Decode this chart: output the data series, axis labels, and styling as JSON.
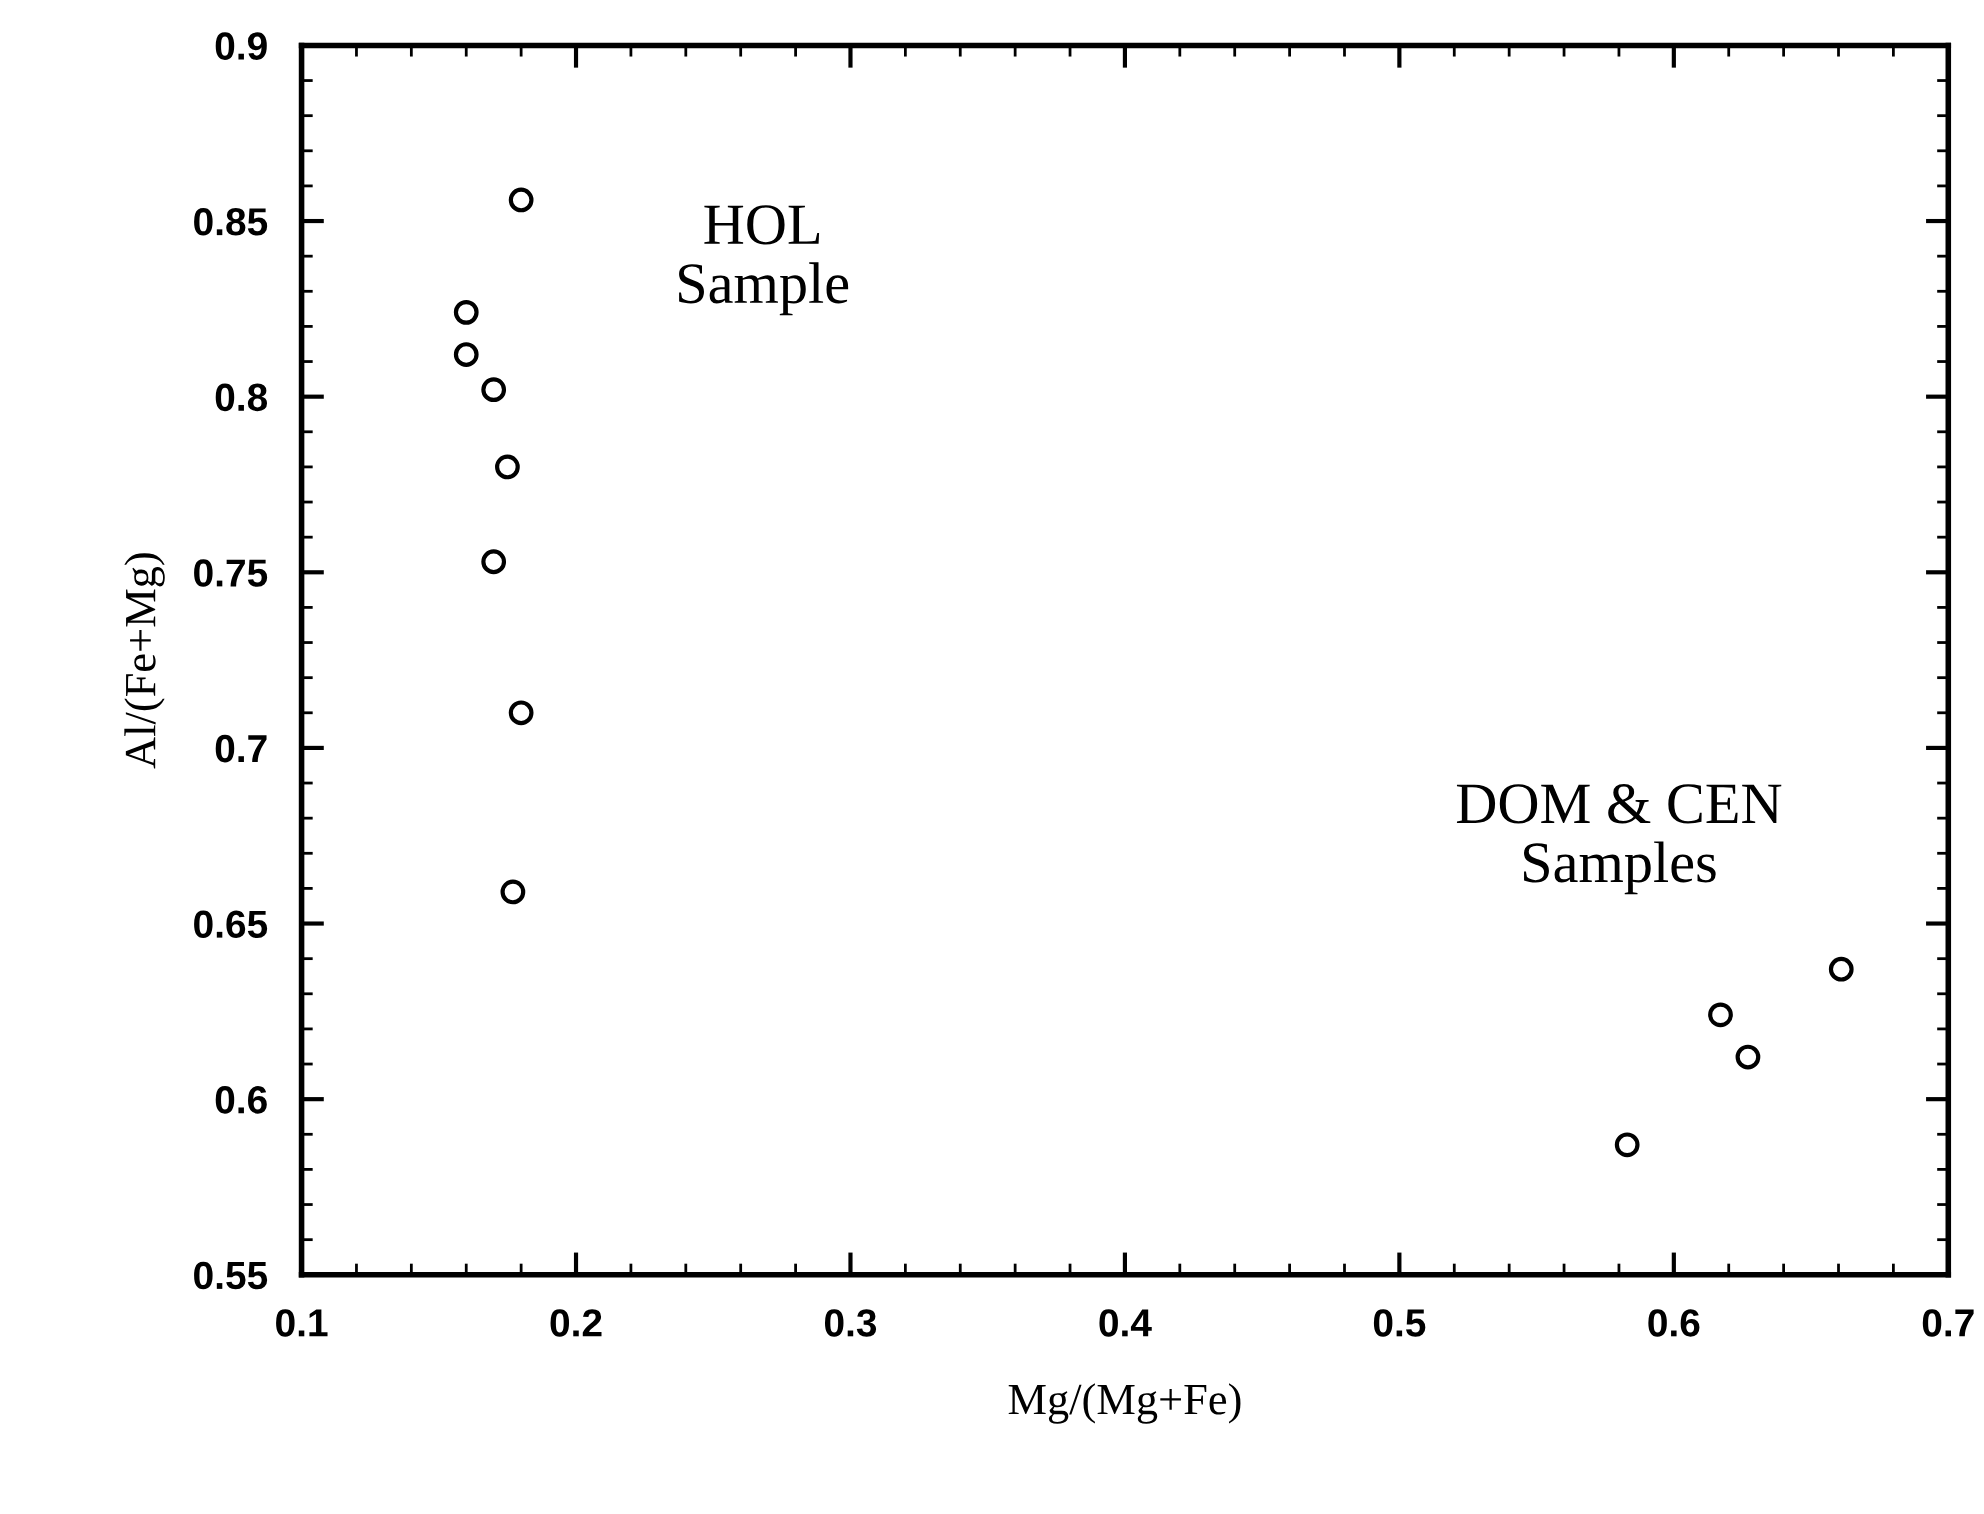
{
  "chart_data": {
    "type": "scatter",
    "xlabel": "Mg/(Mg+Fe)",
    "ylabel": "Al/(Fe+Mg)",
    "x": [
      0.18,
      0.16,
      0.16,
      0.17,
      0.175,
      0.17,
      0.18,
      0.177,
      0.583,
      0.617,
      0.627,
      0.661
    ],
    "values": [
      0.856,
      0.824,
      0.812,
      0.802,
      0.78,
      0.753,
      0.71,
      0.659,
      0.587,
      0.624,
      0.612,
      0.637
    ],
    "color": "#000000",
    "marker": "circle",
    "xlim": [
      0.1,
      0.7
    ],
    "xticks": [
      0.1,
      0.2,
      0.3,
      0.4,
      0.5,
      0.6,
      0.7
    ],
    "ylim": [
      0.55,
      0.9
    ],
    "yticks": [
      0.55,
      0.6,
      0.65,
      0.7,
      0.75,
      0.8,
      0.85,
      0.9
    ],
    "grid": false,
    "annotations": [
      "HOL\nSample",
      "DOM & CEN\nSamples"
    ]
  }
}
